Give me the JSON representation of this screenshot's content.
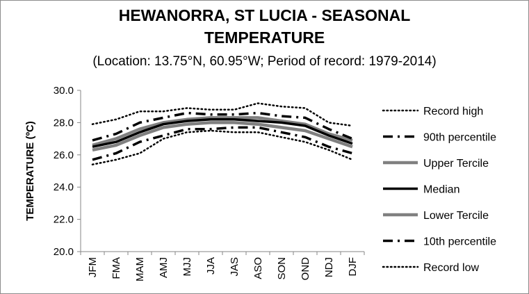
{
  "chart_data": {
    "type": "line",
    "title_line1": "HEWANORRA, ST LUCIA - SEASONAL",
    "title_line2": "TEMPERATURE",
    "subtitle": "(Location: 13.75°N, 60.95°W; Period of record: 1979-2014)",
    "ylabel": "TEMPERATURE (ºC)",
    "xlabel": "",
    "ylim": [
      20.0,
      30.0
    ],
    "yticks": [
      "20.0",
      "22.0",
      "24.0",
      "26.0",
      "28.0",
      "30.0"
    ],
    "grid": false,
    "legend_position": "right",
    "categories": [
      "JFM",
      "FMA",
      "MAM",
      "AMJ",
      "MJJ",
      "JJA",
      "JAS",
      "ASO",
      "SON",
      "OND",
      "NDJ",
      "DJF"
    ],
    "series": [
      {
        "name": "Record high",
        "style": "dotted",
        "color": "#000000",
        "values": [
          27.9,
          28.2,
          28.7,
          28.7,
          28.9,
          28.8,
          28.8,
          29.2,
          29.0,
          28.9,
          28.0,
          27.8
        ]
      },
      {
        "name": "90th percentile",
        "style": "dash-dot",
        "color": "#000000",
        "values": [
          26.9,
          27.3,
          28.0,
          28.3,
          28.6,
          28.5,
          28.5,
          28.6,
          28.4,
          28.3,
          27.6,
          27.0
        ]
      },
      {
        "name": "Upper Tercile",
        "style": "solid",
        "color": "#808080",
        "values": [
          26.6,
          27.0,
          27.6,
          28.0,
          28.2,
          28.3,
          28.3,
          28.3,
          28.1,
          27.9,
          27.3,
          26.9
        ]
      },
      {
        "name": "Median",
        "style": "solid",
        "color": "#000000",
        "values": [
          26.5,
          26.8,
          27.4,
          27.9,
          28.1,
          28.2,
          28.2,
          28.1,
          28.0,
          27.8,
          27.2,
          26.7
        ]
      },
      {
        "name": "Lower Tercile",
        "style": "solid",
        "color": "#808080",
        "values": [
          26.3,
          26.6,
          27.2,
          27.7,
          27.9,
          28.0,
          28.0,
          27.9,
          27.7,
          27.5,
          27.0,
          26.5
        ]
      },
      {
        "name": "10th percentile",
        "style": "dash-dot",
        "color": "#000000",
        "values": [
          25.7,
          26.1,
          26.8,
          27.2,
          27.6,
          27.6,
          27.7,
          27.7,
          27.4,
          27.1,
          26.5,
          26.1
        ]
      },
      {
        "name": "Record low",
        "style": "dotted",
        "color": "#000000",
        "values": [
          25.4,
          25.7,
          26.1,
          27.0,
          27.4,
          27.5,
          27.4,
          27.4,
          27.1,
          26.8,
          26.3,
          25.7
        ]
      }
    ]
  }
}
